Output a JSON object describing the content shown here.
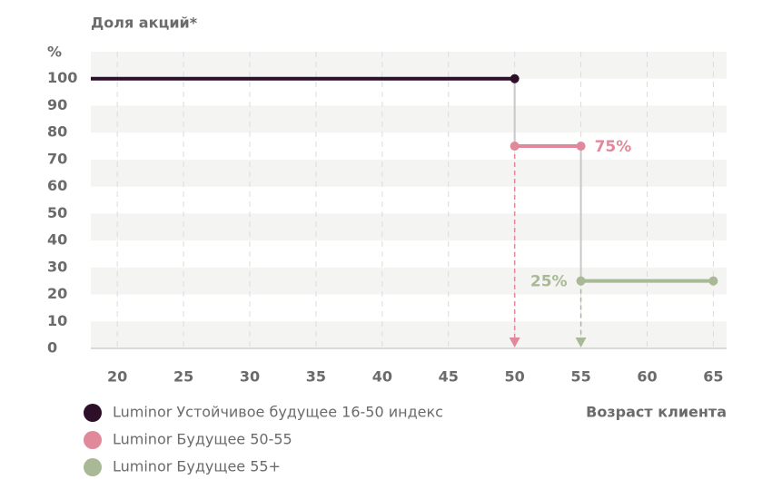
{
  "chart_data": {
    "type": "line",
    "title": "Доля акций*",
    "ylabel": "%",
    "xlabel": "Возраст клиента",
    "xlim": [
      18,
      66
    ],
    "xticks": [
      20,
      25,
      30,
      35,
      40,
      45,
      50,
      55,
      60,
      65
    ],
    "ylim": [
      0,
      110
    ],
    "yticks": [
      0,
      10,
      20,
      30,
      40,
      50,
      60,
      70,
      80,
      90,
      100
    ],
    "grid": true,
    "series": [
      {
        "name": "Luminor Устойчивое будущее 16-50 индекс",
        "color": "#2d0f2a",
        "x": [
          18,
          50
        ],
        "values": [
          100,
          100
        ],
        "markers": [
          false,
          true
        ]
      },
      {
        "name": "Luminor Будущее 50-55",
        "color": "#e0899a",
        "x": [
          50,
          55
        ],
        "values": [
          75,
          75
        ],
        "markers": [
          true,
          true
        ],
        "value_labels": [
          null,
          "75%"
        ]
      },
      {
        "name": "Luminor Будущее 55+",
        "color": "#a9b995",
        "x": [
          55,
          65
        ],
        "values": [
          25,
          25
        ],
        "markers": [
          true,
          true
        ],
        "value_labels": [
          "25%",
          null
        ]
      }
    ]
  }
}
